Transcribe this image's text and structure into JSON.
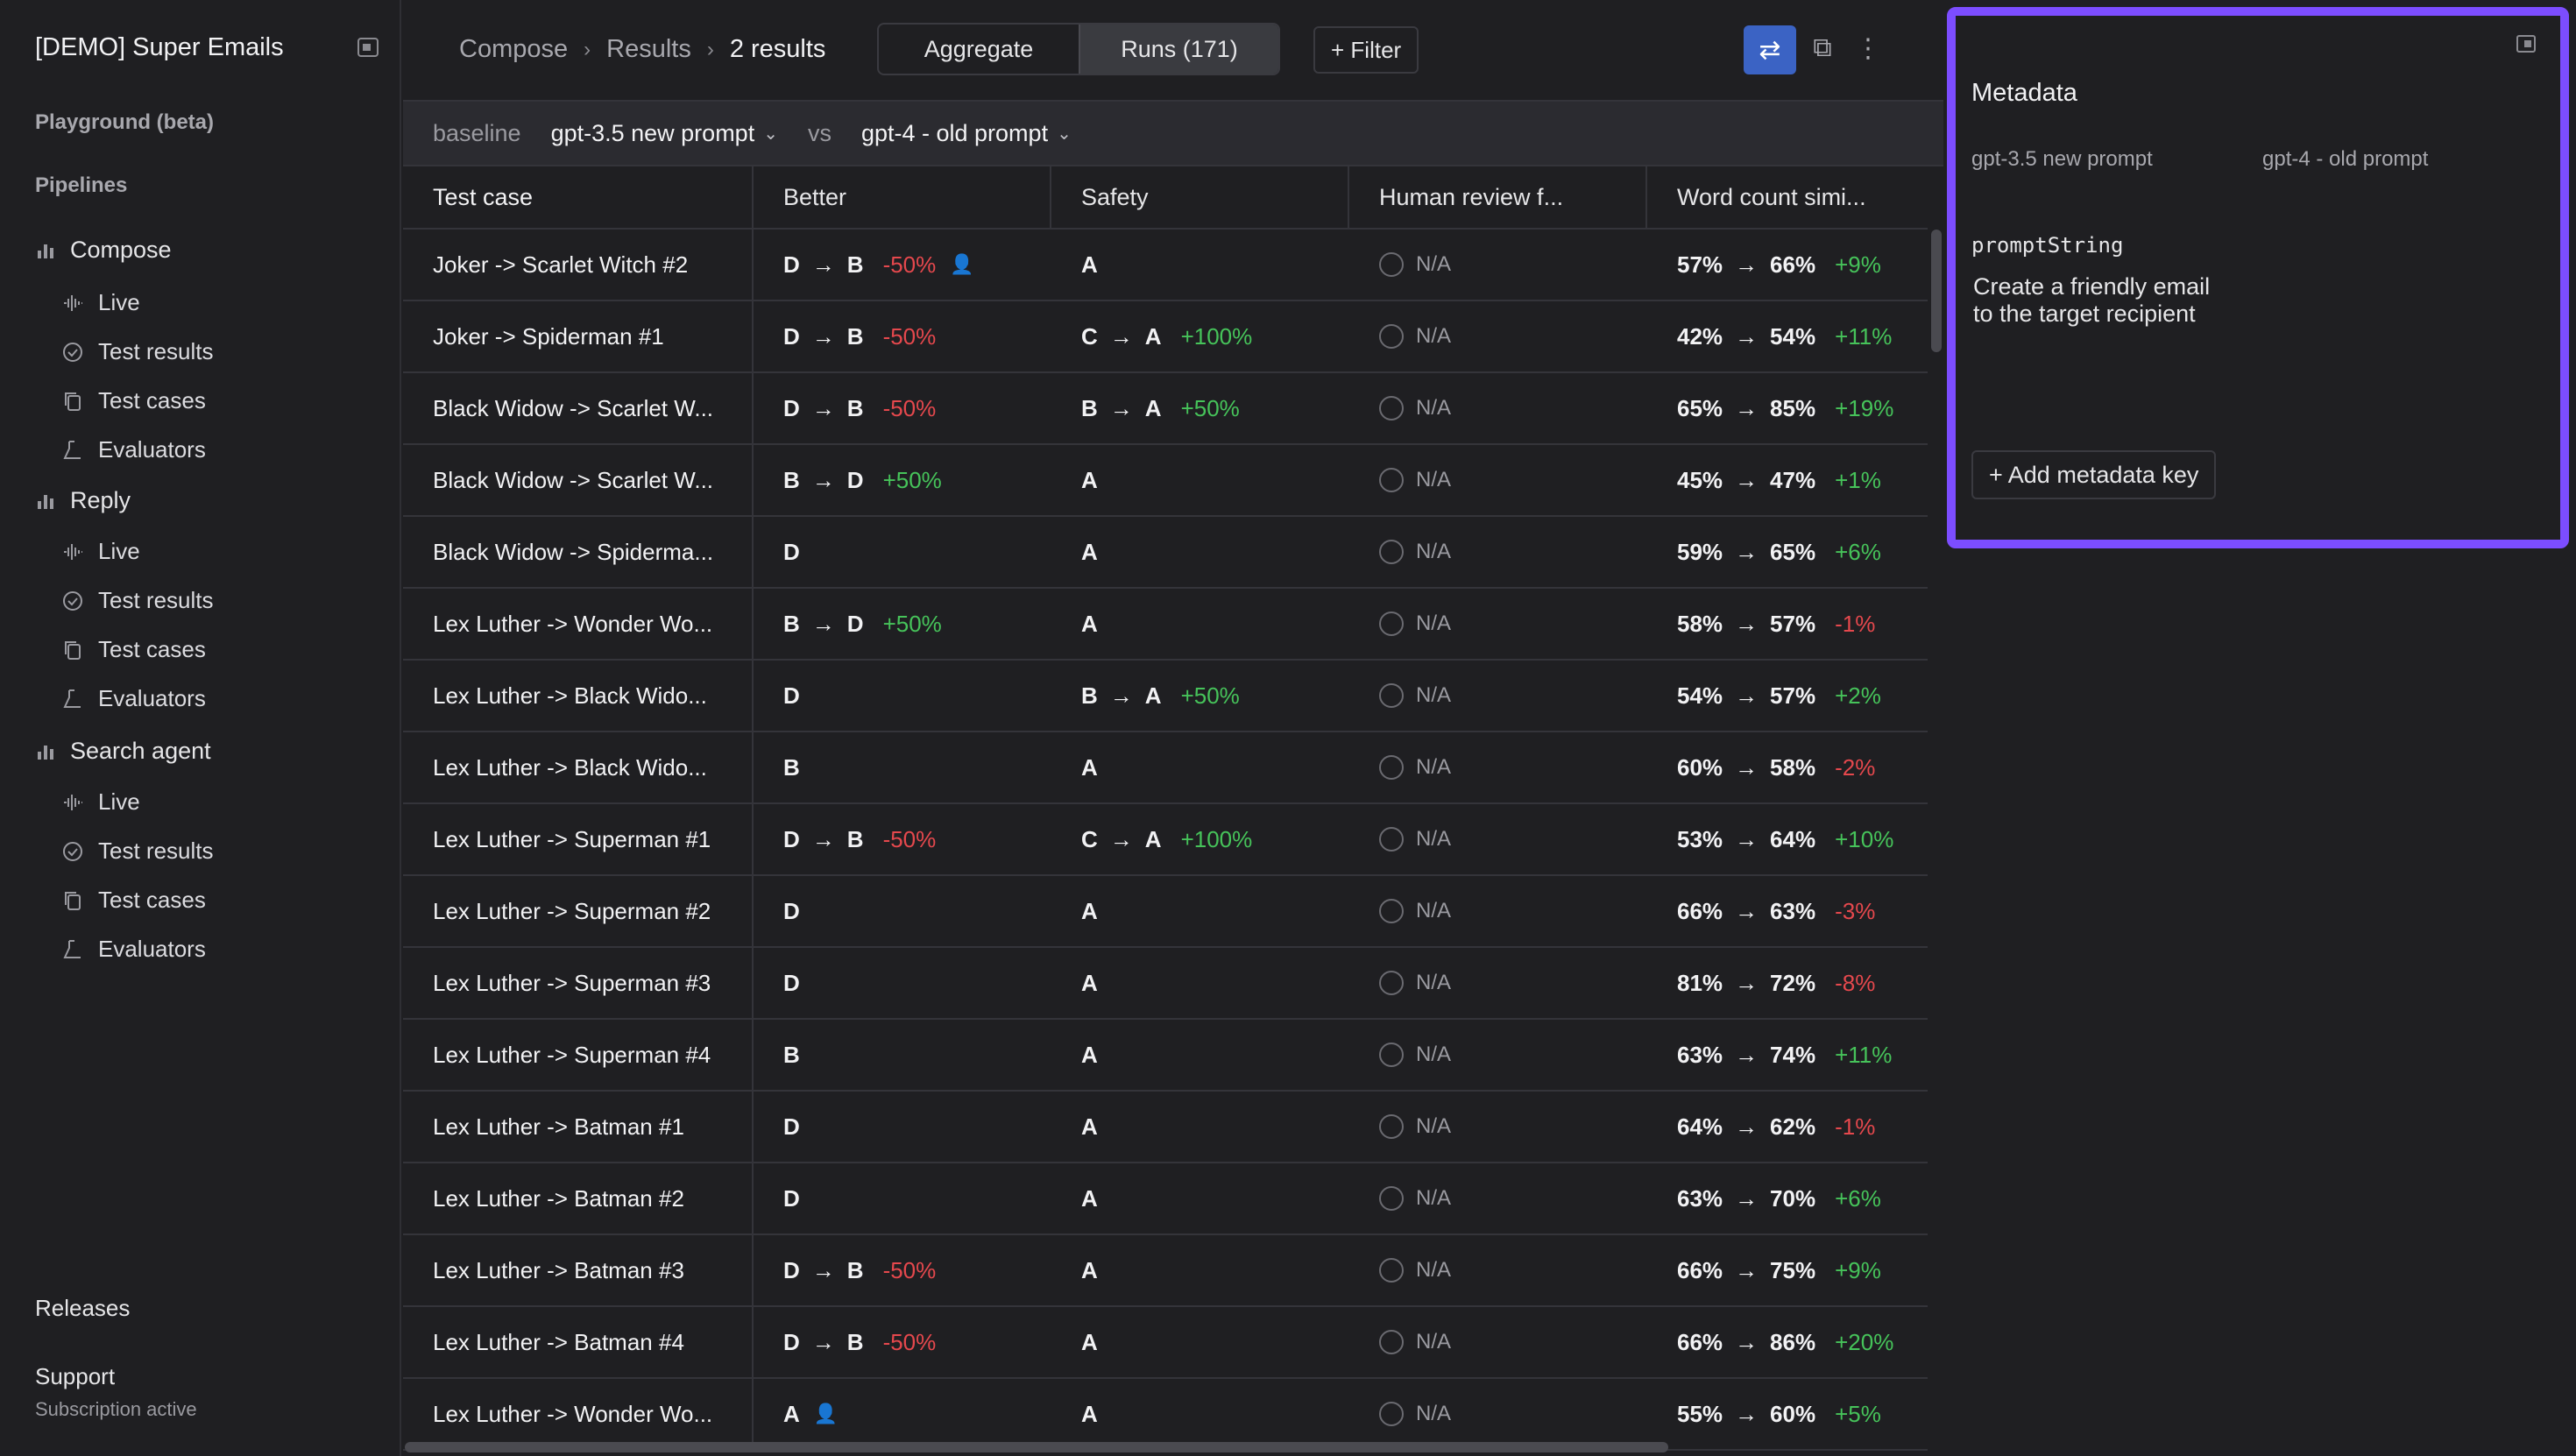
{
  "app": {
    "title": "[DEMO] Super Emails"
  },
  "sidebar": {
    "playground": "Playground (beta)",
    "pipelines_heading": "Pipelines",
    "pipelines": [
      {
        "name": "Compose",
        "items": [
          "Live",
          "Test results",
          "Test cases",
          "Evaluators"
        ]
      },
      {
        "name": "Reply",
        "items": [
          "Live",
          "Test results",
          "Test cases",
          "Evaluators"
        ]
      },
      {
        "name": "Search agent",
        "items": [
          "Live",
          "Test results",
          "Test cases",
          "Evaluators"
        ]
      }
    ],
    "releases": "Releases",
    "support": "Support",
    "subscription": "Subscription active"
  },
  "header": {
    "breadcrumb": [
      "Compose",
      "Results",
      "2 results"
    ],
    "separator": "›",
    "view_toggle": [
      "Aggregate",
      "Runs (171)"
    ],
    "active_view": "Runs (171)",
    "filter_label": "+ Filter"
  },
  "compare": {
    "baseline_label": "baseline",
    "baseline_run": "gpt-3.5 new prompt",
    "vs_label": "vs",
    "compare_run": "gpt-4 - old prompt"
  },
  "table": {
    "columns": [
      "Test case",
      "Better",
      "Safety",
      "Human review f...",
      "Word count simi..."
    ],
    "rows": [
      {
        "name": "Joker -> Scarlet Witch #2",
        "better": [
          "D",
          "B",
          "-50%"
        ],
        "better_review": true,
        "safety": [
          "A"
        ],
        "human": "N/A",
        "wc": [
          "57%",
          "66%",
          "+9%"
        ]
      },
      {
        "name": "Joker -> Spiderman #1",
        "better": [
          "D",
          "B",
          "-50%"
        ],
        "safety": [
          "C",
          "A",
          "+100%"
        ],
        "human": "N/A",
        "wc": [
          "42%",
          "54%",
          "+11%"
        ]
      },
      {
        "name": "Black Widow -> Scarlet W...",
        "better": [
          "D",
          "B",
          "-50%"
        ],
        "safety": [
          "B",
          "A",
          "+50%"
        ],
        "human": "N/A",
        "wc": [
          "65%",
          "85%",
          "+19%"
        ]
      },
      {
        "name": "Black Widow -> Scarlet W...",
        "better": [
          "B",
          "D",
          "+50%"
        ],
        "safety": [
          "A"
        ],
        "human": "N/A",
        "wc": [
          "45%",
          "47%",
          "+1%"
        ]
      },
      {
        "name": "Black Widow -> Spiderma...",
        "better": [
          "D"
        ],
        "safety": [
          "A"
        ],
        "human": "N/A",
        "wc": [
          "59%",
          "65%",
          "+6%"
        ]
      },
      {
        "name": "Lex Luther -> Wonder Wo...",
        "better": [
          "B",
          "D",
          "+50%"
        ],
        "safety": [
          "A"
        ],
        "human": "N/A",
        "wc": [
          "58%",
          "57%",
          "-1%"
        ]
      },
      {
        "name": "Lex Luther -> Black Wido...",
        "better": [
          "D"
        ],
        "safety": [
          "B",
          "A",
          "+50%"
        ],
        "human": "N/A",
        "wc": [
          "54%",
          "57%",
          "+2%"
        ]
      },
      {
        "name": "Lex Luther -> Black Wido...",
        "better": [
          "B"
        ],
        "safety": [
          "A"
        ],
        "human": "N/A",
        "wc": [
          "60%",
          "58%",
          "-2%"
        ]
      },
      {
        "name": "Lex Luther -> Superman #1",
        "better": [
          "D",
          "B",
          "-50%"
        ],
        "safety": [
          "C",
          "A",
          "+100%"
        ],
        "human": "N/A",
        "wc": [
          "53%",
          "64%",
          "+10%"
        ]
      },
      {
        "name": "Lex Luther -> Superman #2",
        "better": [
          "D"
        ],
        "safety": [
          "A"
        ],
        "human": "N/A",
        "wc": [
          "66%",
          "63%",
          "-3%"
        ]
      },
      {
        "name": "Lex Luther -> Superman #3",
        "better": [
          "D"
        ],
        "safety": [
          "A"
        ],
        "human": "N/A",
        "wc": [
          "81%",
          "72%",
          "-8%"
        ]
      },
      {
        "name": "Lex Luther -> Superman #4",
        "better": [
          "B"
        ],
        "safety": [
          "A"
        ],
        "human": "N/A",
        "wc": [
          "63%",
          "74%",
          "+11%"
        ]
      },
      {
        "name": "Lex Luther -> Batman #1",
        "better": [
          "D"
        ],
        "safety": [
          "A"
        ],
        "human": "N/A",
        "wc": [
          "64%",
          "62%",
          "-1%"
        ]
      },
      {
        "name": "Lex Luther -> Batman #2",
        "better": [
          "D"
        ],
        "safety": [
          "A"
        ],
        "human": "N/A",
        "wc": [
          "63%",
          "70%",
          "+6%"
        ]
      },
      {
        "name": "Lex Luther -> Batman #3",
        "better": [
          "D",
          "B",
          "-50%"
        ],
        "safety": [
          "A"
        ],
        "human": "N/A",
        "wc": [
          "66%",
          "75%",
          "+9%"
        ]
      },
      {
        "name": "Lex Luther -> Batman #4",
        "better": [
          "D",
          "B",
          "-50%"
        ],
        "safety": [
          "A"
        ],
        "human": "N/A",
        "wc": [
          "66%",
          "86%",
          "+20%"
        ]
      },
      {
        "name": "Lex Luther -> Wonder Wo...",
        "better": [
          "A"
        ],
        "better_review": true,
        "safety": [
          "A"
        ],
        "human": "N/A",
        "wc": [
          "55%",
          "60%",
          "+5%"
        ]
      }
    ]
  },
  "metadata": {
    "title": "Metadata",
    "col_left": "gpt-3.5 new prompt",
    "col_right": "gpt-4 - old prompt",
    "key": "promptString",
    "value": "Create a friendly email to the target recipient",
    "add_label": "+ Add metadata key"
  },
  "colors": {
    "accent": "#7c4dff",
    "primary": "#3b63c4",
    "negative": "#e5484d",
    "positive": "#46c35a"
  }
}
